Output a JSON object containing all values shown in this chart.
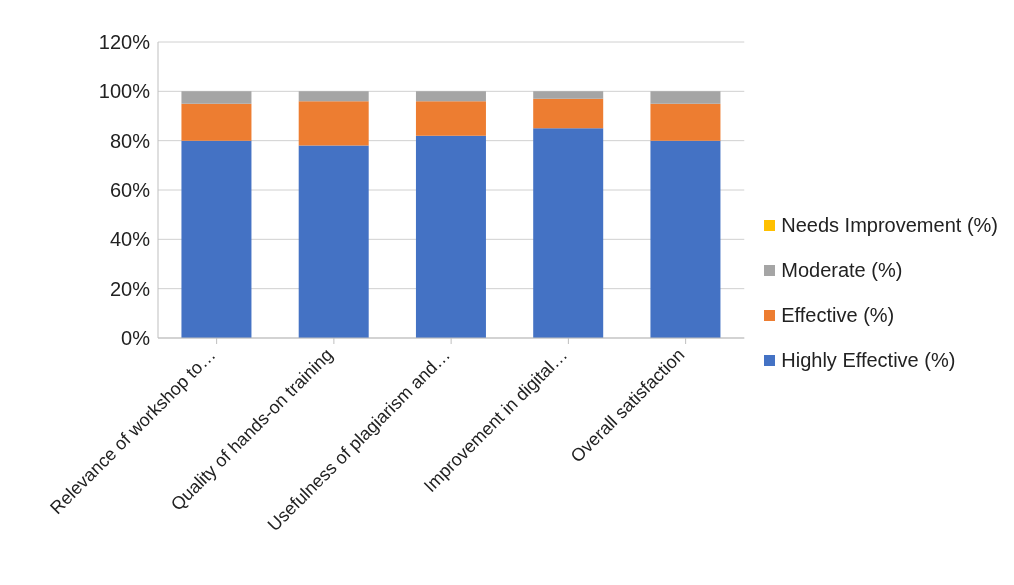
{
  "chart_data": {
    "type": "bar",
    "stacked": true,
    "categories": [
      "Relevance of workshop to…",
      "Quality of hands-on training",
      "Usefulness of plagiarism and…",
      "Improvement in digital…",
      "Overall satisfaction"
    ],
    "series": [
      {
        "name": "Highly Effective (%)",
        "color": "#4472c4",
        "values": [
          80,
          78,
          82,
          85,
          80
        ]
      },
      {
        "name": "Effective (%)",
        "color": "#ed7d31",
        "values": [
          15,
          18,
          14,
          12,
          15
        ]
      },
      {
        "name": "Moderate (%)",
        "color": "#a5a5a5",
        "values": [
          5,
          4,
          4,
          3,
          5
        ]
      },
      {
        "name": "Needs Improvement (%)",
        "color": "#ffc000",
        "values": [
          0,
          0,
          0,
          0,
          0
        ]
      }
    ],
    "ylim": [
      0,
      120
    ],
    "yticks": [
      {
        "value": 0,
        "label": "0%"
      },
      {
        "value": 20,
        "label": "20%"
      },
      {
        "value": 40,
        "label": "40%"
      },
      {
        "value": 60,
        "label": "60%"
      },
      {
        "value": 80,
        "label": "80%"
      },
      {
        "value": 100,
        "label": "100%"
      },
      {
        "value": 120,
        "label": "120%"
      }
    ],
    "grid": "y",
    "legend": "right"
  }
}
